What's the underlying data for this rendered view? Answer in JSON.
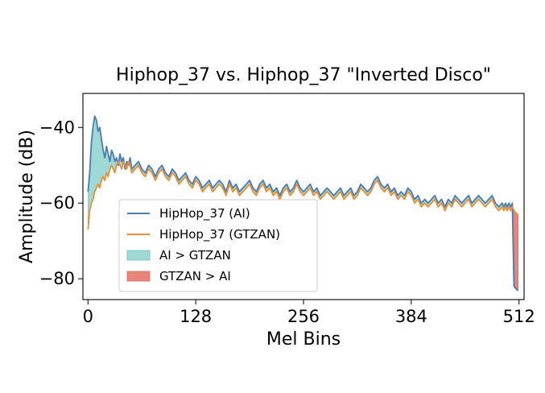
{
  "chart_data": {
    "type": "line",
    "title": "Hiphop_37 vs. Hiphop_37 \"Inverted Disco\"",
    "xlabel": "Mel Bins",
    "ylabel": "Amplitude (dB)",
    "xlim": [
      -6,
      518
    ],
    "ylim": [
      -85.5,
      -31
    ],
    "xticks": [
      0,
      128,
      256,
      384,
      512
    ],
    "xtick_labels": [
      "0",
      "128",
      "256",
      "384",
      "512"
    ],
    "yticks": [
      -40,
      -60,
      -80
    ],
    "ytick_labels": [
      "−40",
      "−60",
      "−80"
    ],
    "grid": false,
    "legend_position": "lower-left",
    "colors": {
      "ai": "#4c7bb3",
      "gtzan": "#eb8f35",
      "ai_fill": "#9fd9d6",
      "gtzan_fill": "#e7857a"
    },
    "legend": [
      {
        "label": "HipHop_37 (AI)",
        "kind": "line",
        "series": "ai"
      },
      {
        "label": "HipHop_37 (GTZAN)",
        "kind": "line",
        "series": "gtzan"
      },
      {
        "label": "AI > GTZAN",
        "kind": "fill",
        "series": "ai_fill"
      },
      {
        "label": "GTZAN > AI",
        "kind": "fill",
        "series": "gtzan_fill"
      }
    ],
    "x": [
      0,
      2,
      4,
      6,
      8,
      10,
      12,
      14,
      16,
      18,
      20,
      22,
      24,
      26,
      28,
      30,
      32,
      34,
      36,
      38,
      40,
      42,
      44,
      46,
      48,
      50,
      52,
      56,
      60,
      64,
      68,
      72,
      76,
      80,
      84,
      88,
      92,
      96,
      100,
      104,
      108,
      112,
      116,
      120,
      124,
      128,
      132,
      136,
      140,
      144,
      148,
      152,
      156,
      160,
      164,
      168,
      172,
      176,
      180,
      184,
      188,
      192,
      196,
      200,
      204,
      208,
      212,
      216,
      220,
      224,
      228,
      232,
      236,
      240,
      244,
      248,
      252,
      256,
      260,
      264,
      268,
      272,
      276,
      280,
      284,
      288,
      292,
      296,
      300,
      304,
      308,
      312,
      316,
      320,
      324,
      328,
      332,
      336,
      340,
      344,
      348,
      352,
      356,
      360,
      364,
      368,
      372,
      376,
      380,
      384,
      388,
      392,
      396,
      400,
      404,
      408,
      412,
      416,
      420,
      424,
      428,
      432,
      436,
      440,
      444,
      448,
      452,
      456,
      460,
      464,
      468,
      472,
      476,
      480,
      484,
      488,
      492,
      494,
      496,
      498,
      500,
      502,
      504,
      506,
      508,
      510,
      511
    ],
    "series": [
      {
        "name": "HipHop_37 (AI)",
        "key": "ai",
        "values": [
          -57,
          -52,
          -44,
          -40,
          -37,
          -38,
          -41,
          -40,
          -43,
          -46,
          -48,
          -45,
          -47,
          -49,
          -46,
          -47,
          -49,
          -48,
          -50,
          -47,
          -49,
          -48,
          -51,
          -49,
          -50,
          -48,
          -51,
          -50,
          -49,
          -51,
          -52,
          -50,
          -51,
          -53,
          -51,
          -50,
          -52,
          -53,
          -51,
          -52,
          -54,
          -53,
          -52,
          -54,
          -55,
          -53,
          -54,
          -56,
          -55,
          -54,
          -56,
          -55,
          -54,
          -55,
          -57,
          -54,
          -56,
          -55,
          -57,
          -56,
          -55,
          -54,
          -56,
          -57,
          -55,
          -54,
          -56,
          -55,
          -57,
          -56,
          -58,
          -56,
          -55,
          -57,
          -56,
          -54,
          -56,
          -57,
          -56,
          -55,
          -57,
          -56,
          -58,
          -57,
          -56,
          -57,
          -58,
          -57,
          -56,
          -58,
          -57,
          -56,
          -58,
          -57,
          -55,
          -56,
          -57,
          -56,
          -54,
          -53,
          -55,
          -56,
          -55,
          -57,
          -56,
          -58,
          -57,
          -58,
          -56,
          -57,
          -59,
          -58,
          -60,
          -59,
          -60,
          -59,
          -58,
          -60,
          -59,
          -61,
          -59,
          -60,
          -58,
          -59,
          -60,
          -59,
          -58,
          -60,
          -59,
          -58,
          -59,
          -60,
          -59,
          -58,
          -60,
          -61,
          -60,
          -61,
          -60,
          -61,
          -60,
          -61,
          -60,
          -82,
          -82.5,
          -83,
          -83
        ]
      },
      {
        "name": "HipHop_37 (GTZAN)",
        "key": "gtzan",
        "values": [
          -67,
          -62,
          -60,
          -59,
          -57,
          -56,
          -55,
          -56,
          -54,
          -53,
          -54,
          -52,
          -53,
          -51,
          -50,
          -51,
          -52,
          -50,
          -49,
          -50,
          -51,
          -49,
          -50,
          -51,
          -49,
          -50,
          -52,
          -51,
          -50,
          -52,
          -53,
          -51,
          -52,
          -54,
          -52,
          -51,
          -53,
          -54,
          -52,
          -53,
          -55,
          -54,
          -53,
          -55,
          -56,
          -54,
          -55,
          -57,
          -56,
          -55,
          -57,
          -56,
          -55,
          -56,
          -58,
          -55,
          -57,
          -56,
          -58,
          -57,
          -56,
          -55,
          -57,
          -58,
          -56,
          -55,
          -57,
          -56,
          -58,
          -57,
          -59,
          -57,
          -56,
          -58,
          -57,
          -55,
          -57,
          -58,
          -57,
          -56,
          -58,
          -57,
          -59,
          -58,
          -57,
          -58,
          -59,
          -58,
          -57,
          -59,
          -58,
          -57,
          -59,
          -58,
          -56,
          -57,
          -58,
          -57,
          -55,
          -54,
          -56,
          -57,
          -56,
          -58,
          -57,
          -59,
          -58,
          -59,
          -57,
          -58,
          -60,
          -59,
          -61,
          -60,
          -61,
          -60,
          -59,
          -61,
          -60,
          -62,
          -60,
          -61,
          -59,
          -60,
          -61,
          -60,
          -59,
          -61,
          -60,
          -59,
          -60,
          -61,
          -60,
          -59,
          -61,
          -62,
          -61,
          -62,
          -61,
          -62,
          -61,
          -62,
          -61,
          -62,
          -62.5,
          -63,
          -63
        ]
      }
    ]
  }
}
